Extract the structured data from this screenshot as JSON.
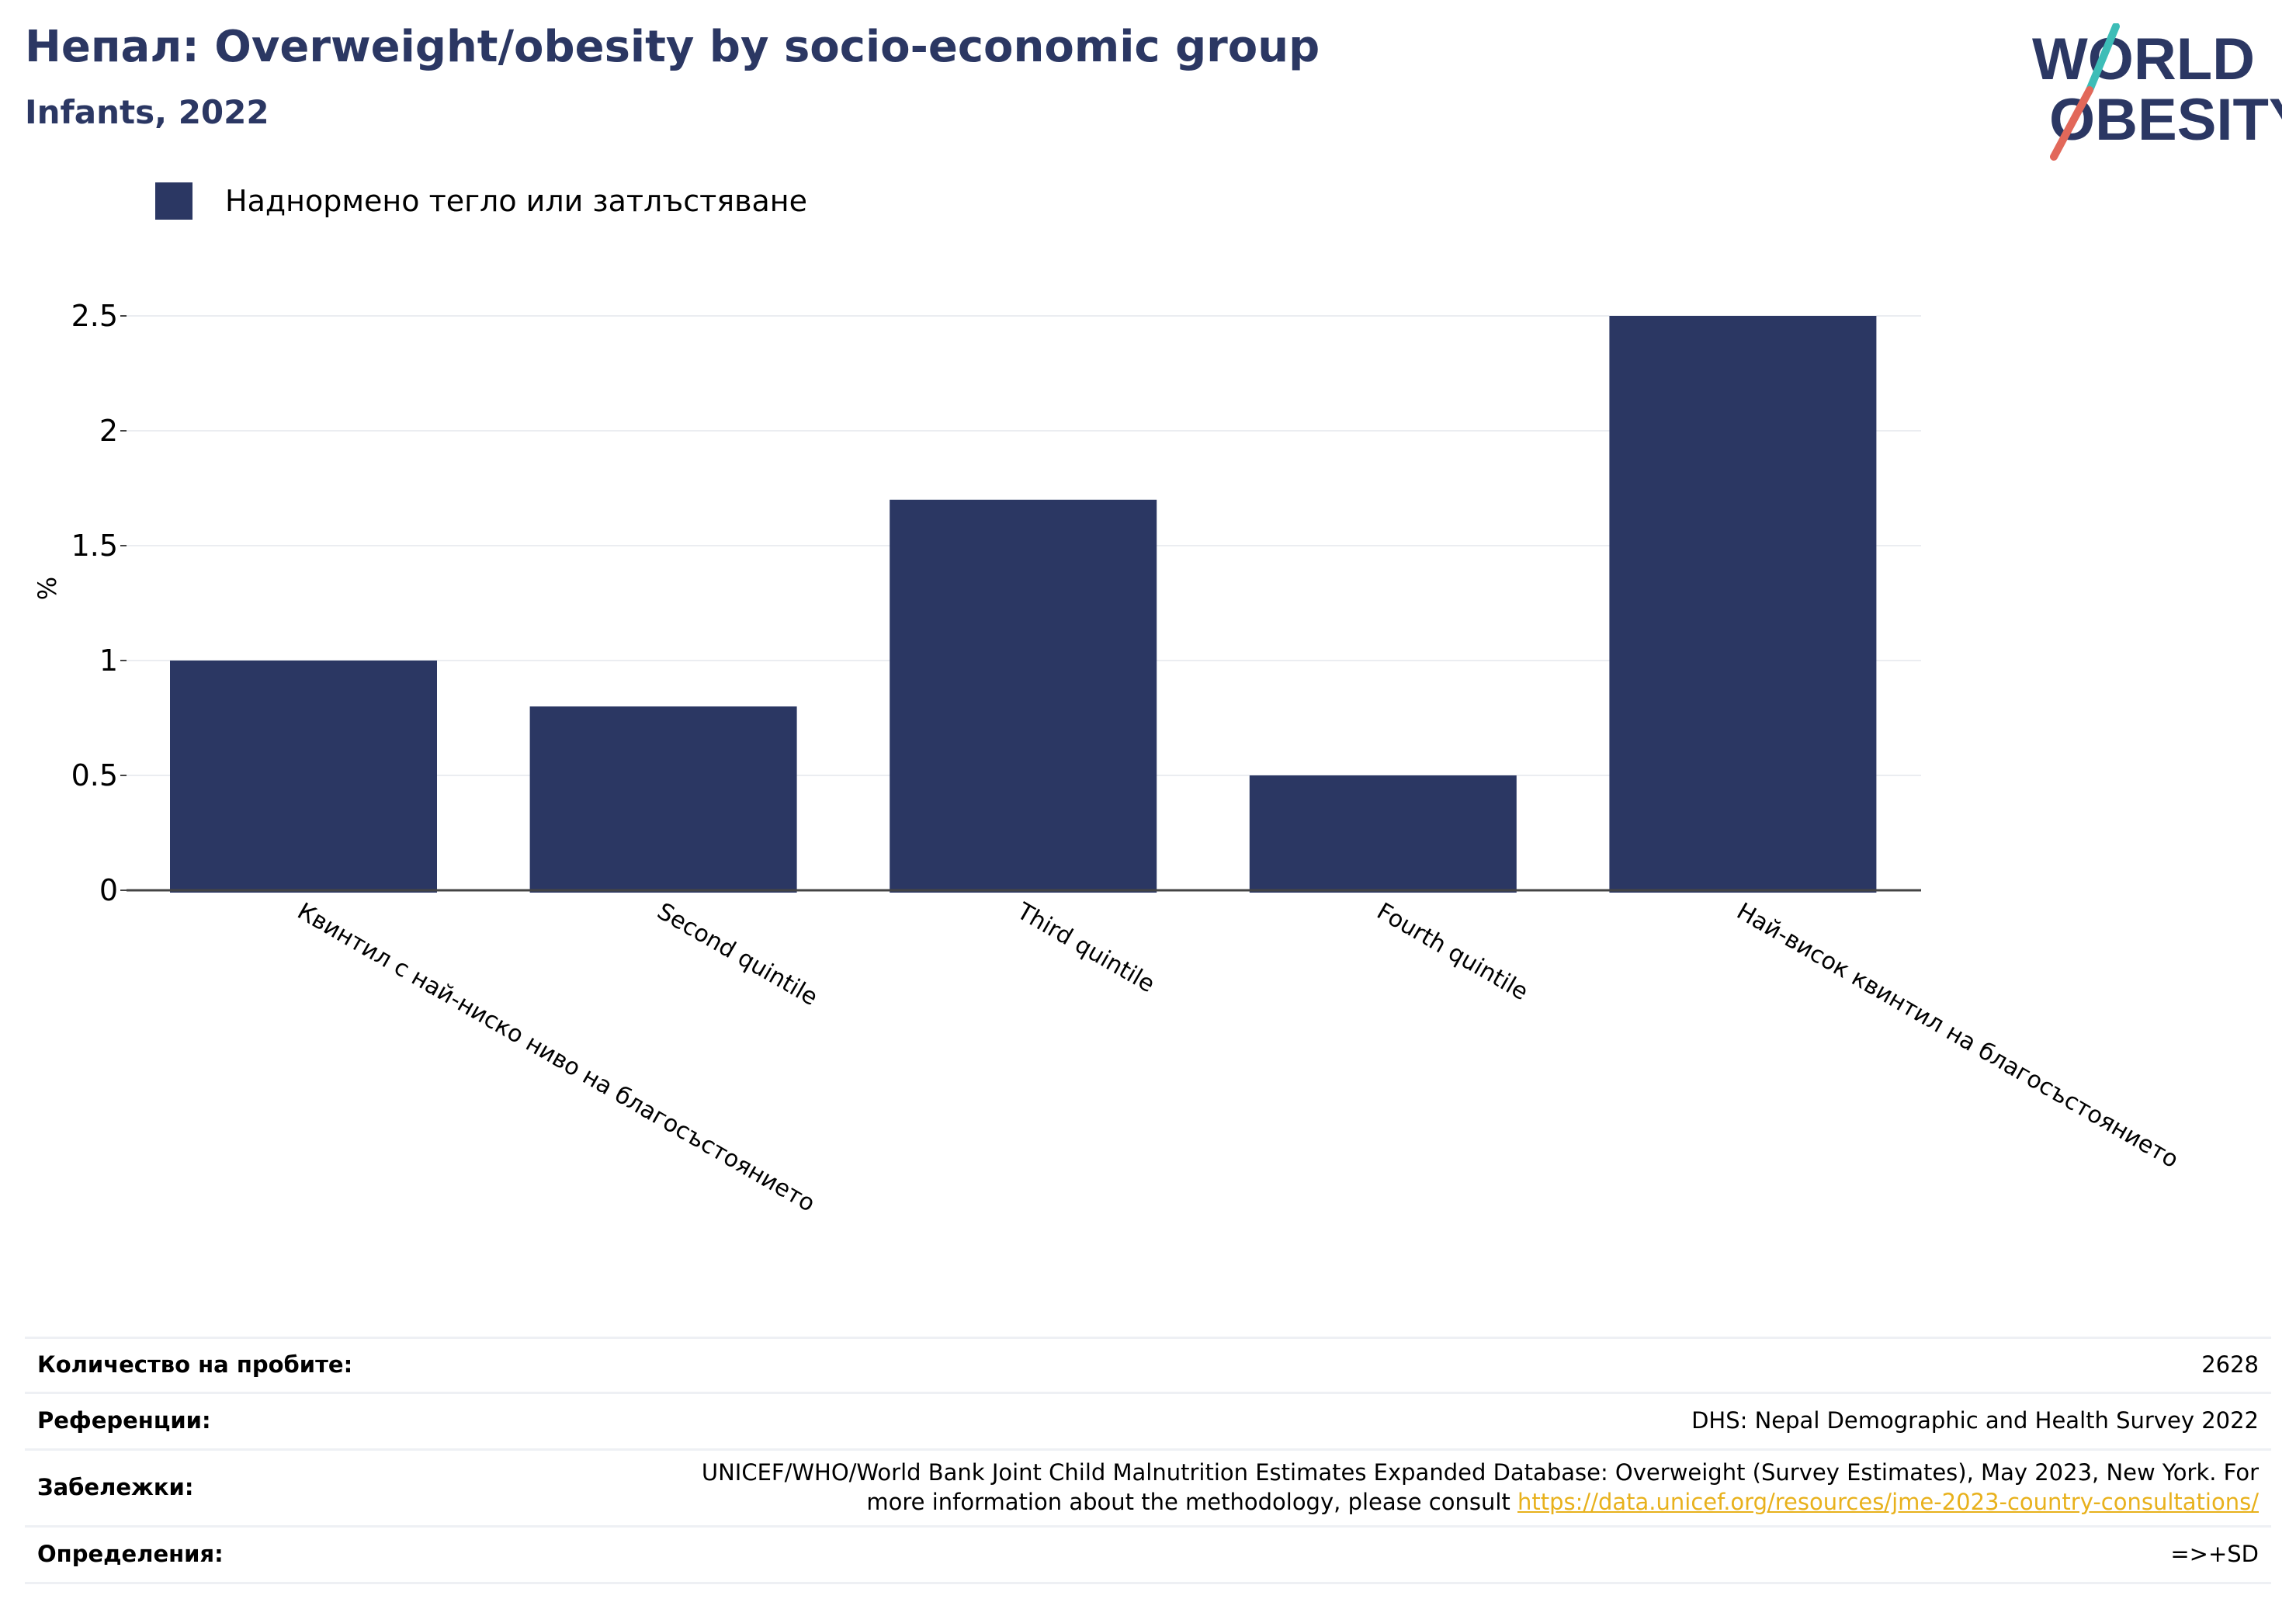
{
  "header": {
    "title": "Непал: Overweight/obesity by socio-economic group",
    "subtitle": "Infants, 2022"
  },
  "logo": {
    "line1": "WORLD",
    "line2": "OBESITY",
    "colors": {
      "text": "#2b3763",
      "slash_top": "#3dbdb7",
      "slash_bottom": "#e2685a"
    }
  },
  "chart_data": {
    "type": "bar",
    "categories": [
      "Квинтил с най-ниско ниво на благосъстоянието",
      "Second quintile",
      "Third quintile",
      "Fourth quintile",
      "Най-висок квинтил на благосъстоянието"
    ],
    "series": [
      {
        "name": "Наднормено тегло или затлъстяване",
        "values": [
          1.0,
          0.8,
          1.7,
          0.5,
          2.5
        ],
        "color": "#2b3763"
      }
    ],
    "ylabel": "%",
    "xlabel": "",
    "ylim": [
      0,
      2.6
    ],
    "yticks": [
      0,
      0.5,
      1,
      1.5,
      2,
      2.5
    ],
    "ytick_labels": [
      "0",
      "0.5",
      "1",
      "1.5",
      "2",
      "2.5"
    ],
    "grid": true,
    "legend_position": "top-left"
  },
  "footer": {
    "sample_label": "Количество на пробите:",
    "sample_value": "2628",
    "references_label": "Референции:",
    "references_value": "DHS: Nepal Demographic and Health Survey 2022",
    "notes_label": "Забележки:",
    "notes_line1": "UNICEF/WHO/World Bank Joint Child Malnutrition Estimates Expanded Database: Overweight (Survey Estimates), May 2023, New York. For",
    "notes_line2": "more information about the methodology, please consult",
    "notes_link": "https://data.unicef.org/resources/jme-2023-country-consultations/",
    "definitions_label": "Определения:",
    "definitions_value": "=>+SD"
  }
}
